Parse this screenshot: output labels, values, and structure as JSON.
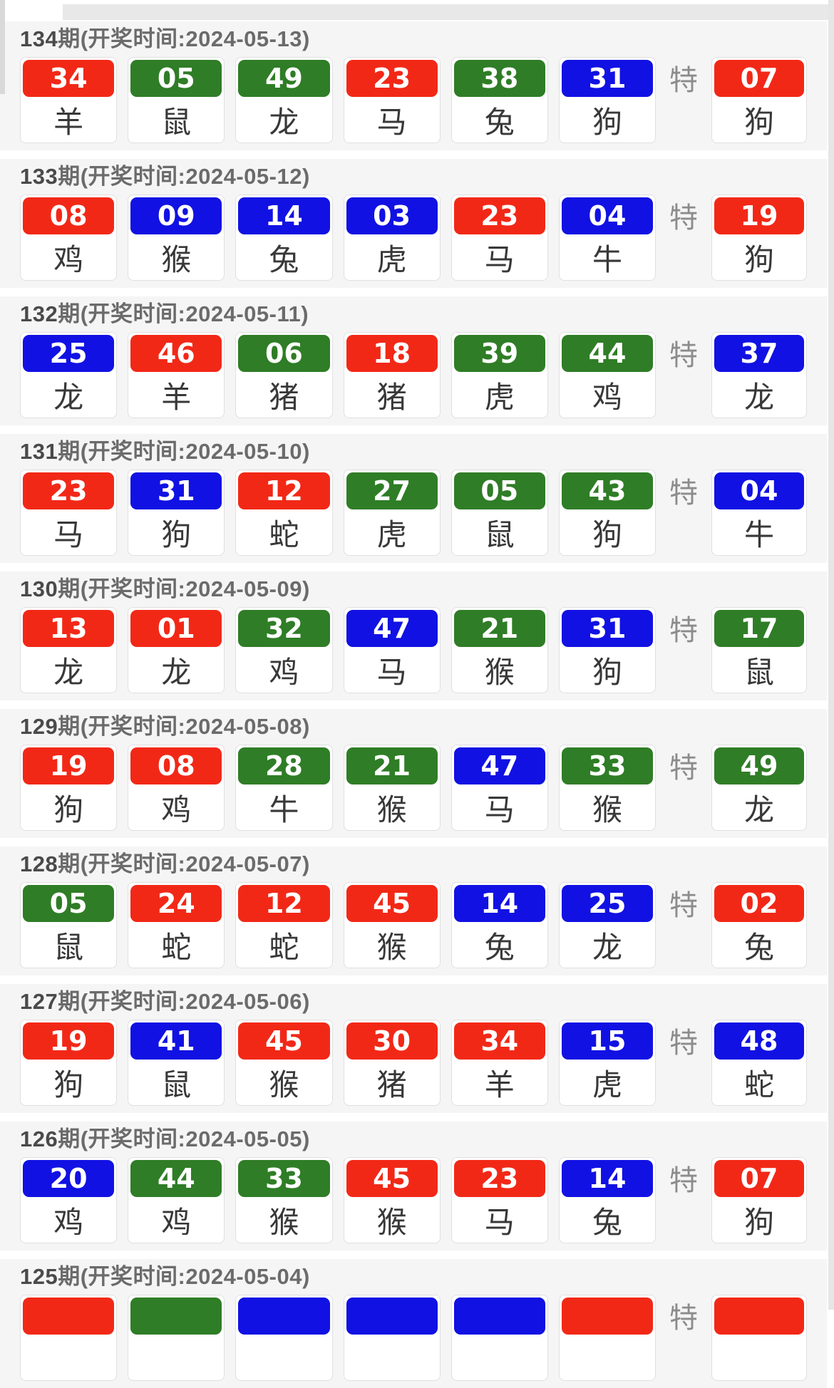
{
  "labels": {
    "special": "特",
    "header_prefix_word": "期",
    "header_time_word": "开奖时间"
  },
  "colors": {
    "red": "#f22817",
    "green": "#2f7d26",
    "blue": "#1111e3",
    "chip_text": "#ffffff",
    "block_bg": "#f5f5f5",
    "header_text": "#6b6b6b",
    "special_label_text": "#8c8c8c"
  },
  "rows": [
    {
      "period": "134",
      "title_suffix": "期(开奖时间:2024-05-13)",
      "date": "2024-05-13",
      "balls": [
        {
          "num": "34",
          "color": "red",
          "zodiac": "羊"
        },
        {
          "num": "05",
          "color": "green",
          "zodiac": "鼠"
        },
        {
          "num": "49",
          "color": "green",
          "zodiac": "龙"
        },
        {
          "num": "23",
          "color": "red",
          "zodiac": "马"
        },
        {
          "num": "38",
          "color": "green",
          "zodiac": "兔"
        },
        {
          "num": "31",
          "color": "blue",
          "zodiac": "狗"
        }
      ],
      "special": {
        "num": "07",
        "color": "red",
        "zodiac": "狗"
      }
    },
    {
      "period": "133",
      "title_suffix": "期(开奖时间:2024-05-12)",
      "date": "2024-05-12",
      "balls": [
        {
          "num": "08",
          "color": "red",
          "zodiac": "鸡"
        },
        {
          "num": "09",
          "color": "blue",
          "zodiac": "猴"
        },
        {
          "num": "14",
          "color": "blue",
          "zodiac": "兔"
        },
        {
          "num": "03",
          "color": "blue",
          "zodiac": "虎"
        },
        {
          "num": "23",
          "color": "red",
          "zodiac": "马"
        },
        {
          "num": "04",
          "color": "blue",
          "zodiac": "牛"
        }
      ],
      "special": {
        "num": "19",
        "color": "red",
        "zodiac": "狗"
      }
    },
    {
      "period": "132",
      "title_suffix": "期(开奖时间:2024-05-11)",
      "date": "2024-05-11",
      "balls": [
        {
          "num": "25",
          "color": "blue",
          "zodiac": "龙"
        },
        {
          "num": "46",
          "color": "red",
          "zodiac": "羊"
        },
        {
          "num": "06",
          "color": "green",
          "zodiac": "猪"
        },
        {
          "num": "18",
          "color": "red",
          "zodiac": "猪"
        },
        {
          "num": "39",
          "color": "green",
          "zodiac": "虎"
        },
        {
          "num": "44",
          "color": "green",
          "zodiac": "鸡"
        }
      ],
      "special": {
        "num": "37",
        "color": "blue",
        "zodiac": "龙"
      }
    },
    {
      "period": "131",
      "title_suffix": "期(开奖时间:2024-05-10)",
      "date": "2024-05-10",
      "balls": [
        {
          "num": "23",
          "color": "red",
          "zodiac": "马"
        },
        {
          "num": "31",
          "color": "blue",
          "zodiac": "狗"
        },
        {
          "num": "12",
          "color": "red",
          "zodiac": "蛇"
        },
        {
          "num": "27",
          "color": "green",
          "zodiac": "虎"
        },
        {
          "num": "05",
          "color": "green",
          "zodiac": "鼠"
        },
        {
          "num": "43",
          "color": "green",
          "zodiac": "狗"
        }
      ],
      "special": {
        "num": "04",
        "color": "blue",
        "zodiac": "牛"
      }
    },
    {
      "period": "130",
      "title_suffix": "期(开奖时间:2024-05-09)",
      "date": "2024-05-09",
      "balls": [
        {
          "num": "13",
          "color": "red",
          "zodiac": "龙"
        },
        {
          "num": "01",
          "color": "red",
          "zodiac": "龙"
        },
        {
          "num": "32",
          "color": "green",
          "zodiac": "鸡"
        },
        {
          "num": "47",
          "color": "blue",
          "zodiac": "马"
        },
        {
          "num": "21",
          "color": "green",
          "zodiac": "猴"
        },
        {
          "num": "31",
          "color": "blue",
          "zodiac": "狗"
        }
      ],
      "special": {
        "num": "17",
        "color": "green",
        "zodiac": "鼠"
      }
    },
    {
      "period": "129",
      "title_suffix": "期(开奖时间:2024-05-08)",
      "date": "2024-05-08",
      "balls": [
        {
          "num": "19",
          "color": "red",
          "zodiac": "狗"
        },
        {
          "num": "08",
          "color": "red",
          "zodiac": "鸡"
        },
        {
          "num": "28",
          "color": "green",
          "zodiac": "牛"
        },
        {
          "num": "21",
          "color": "green",
          "zodiac": "猴"
        },
        {
          "num": "47",
          "color": "blue",
          "zodiac": "马"
        },
        {
          "num": "33",
          "color": "green",
          "zodiac": "猴"
        }
      ],
      "special": {
        "num": "49",
        "color": "green",
        "zodiac": "龙"
      }
    },
    {
      "period": "128",
      "title_suffix": "期(开奖时间:2024-05-07)",
      "date": "2024-05-07",
      "balls": [
        {
          "num": "05",
          "color": "green",
          "zodiac": "鼠"
        },
        {
          "num": "24",
          "color": "red",
          "zodiac": "蛇"
        },
        {
          "num": "12",
          "color": "red",
          "zodiac": "蛇"
        },
        {
          "num": "45",
          "color": "red",
          "zodiac": "猴"
        },
        {
          "num": "14",
          "color": "blue",
          "zodiac": "兔"
        },
        {
          "num": "25",
          "color": "blue",
          "zodiac": "龙"
        }
      ],
      "special": {
        "num": "02",
        "color": "red",
        "zodiac": "兔"
      }
    },
    {
      "period": "127",
      "title_suffix": "期(开奖时间:2024-05-06)",
      "date": "2024-05-06",
      "balls": [
        {
          "num": "19",
          "color": "red",
          "zodiac": "狗"
        },
        {
          "num": "41",
          "color": "blue",
          "zodiac": "鼠"
        },
        {
          "num": "45",
          "color": "red",
          "zodiac": "猴"
        },
        {
          "num": "30",
          "color": "red",
          "zodiac": "猪"
        },
        {
          "num": "34",
          "color": "red",
          "zodiac": "羊"
        },
        {
          "num": "15",
          "color": "blue",
          "zodiac": "虎"
        }
      ],
      "special": {
        "num": "48",
        "color": "blue",
        "zodiac": "蛇"
      }
    },
    {
      "period": "126",
      "title_suffix": "期(开奖时间:2024-05-05)",
      "date": "2024-05-05",
      "balls": [
        {
          "num": "20",
          "color": "blue",
          "zodiac": "鸡"
        },
        {
          "num": "44",
          "color": "green",
          "zodiac": "鸡"
        },
        {
          "num": "33",
          "color": "green",
          "zodiac": "猴"
        },
        {
          "num": "45",
          "color": "red",
          "zodiac": "猴"
        },
        {
          "num": "23",
          "color": "red",
          "zodiac": "马"
        },
        {
          "num": "14",
          "color": "blue",
          "zodiac": "兔"
        }
      ],
      "special": {
        "num": "07",
        "color": "red",
        "zodiac": "狗"
      }
    },
    {
      "period": "125",
      "title_suffix": "期(开奖时间:2024-05-04)",
      "date": "2024-05-04",
      "partial": true,
      "balls": [
        {
          "num": "",
          "color": "red",
          "zodiac": ""
        },
        {
          "num": "",
          "color": "green",
          "zodiac": ""
        },
        {
          "num": "",
          "color": "blue",
          "zodiac": ""
        },
        {
          "num": "",
          "color": "blue",
          "zodiac": ""
        },
        {
          "num": "",
          "color": "blue",
          "zodiac": ""
        },
        {
          "num": "",
          "color": "red",
          "zodiac": ""
        }
      ],
      "special": {
        "num": "",
        "color": "red",
        "zodiac": ""
      }
    }
  ]
}
